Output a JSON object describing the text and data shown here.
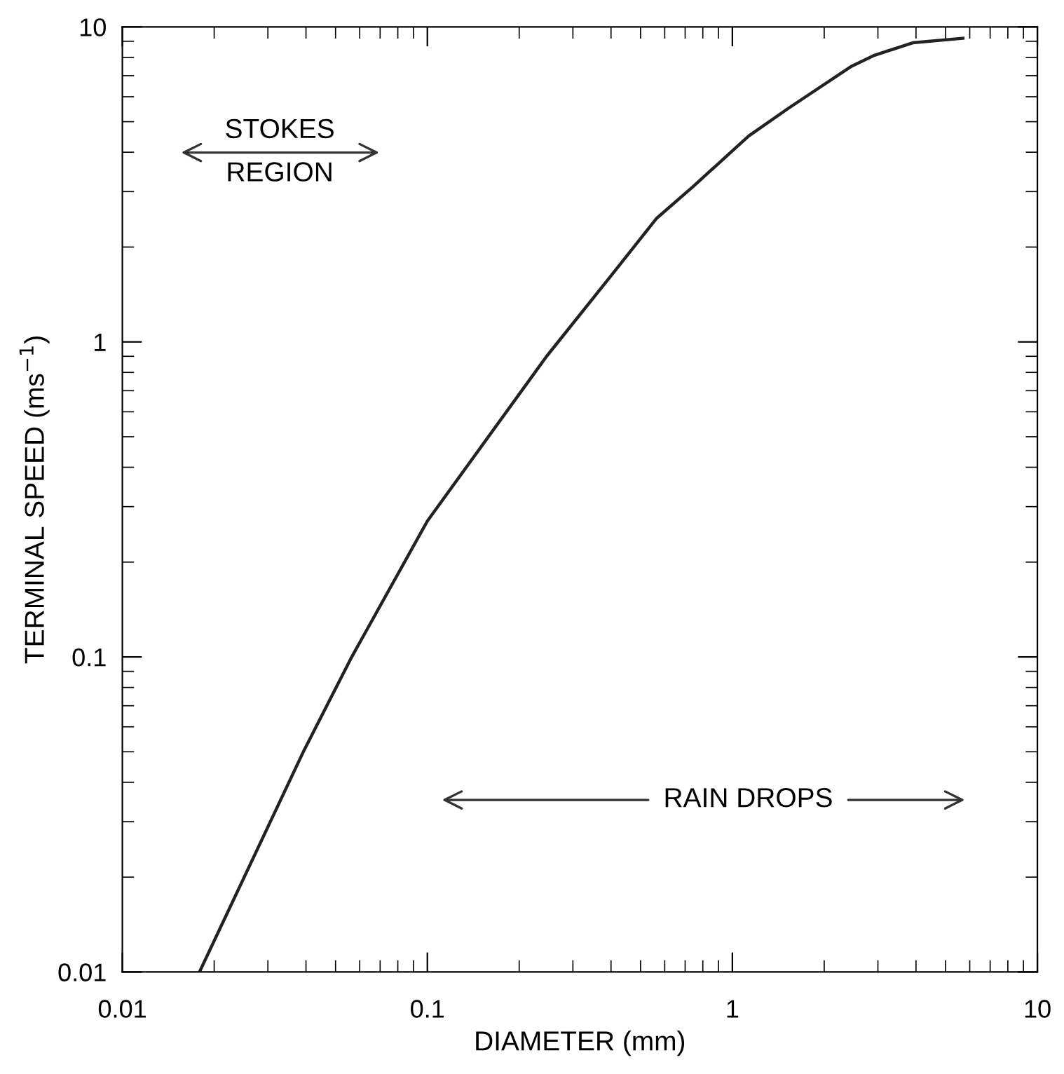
{
  "chart_data": {
    "type": "line",
    "xlabel": "DIAMETER (mm)",
    "ylabel": "TERMINAL SPEED (ms$^{−1}$)",
    "log": "xy",
    "xlim": [
      0.01,
      10
    ],
    "ylim": [
      0.01,
      10
    ],
    "xticks": [
      0.01,
      0.1,
      1,
      10
    ],
    "yticks": [
      0.01,
      0.1,
      1,
      10
    ],
    "series": [
      {
        "color": "#222222",
        "x": [
          0.0179,
          0.0394,
          0.0565,
          0.1,
          0.246,
          0.406,
          0.565,
          0.74,
          1.13,
          1.52,
          2.46,
          2.9,
          3.9,
          5.7
        ],
        "values": [
          0.01,
          0.0505,
          0.1,
          0.27,
          0.9,
          1.65,
          2.47,
          3.1,
          4.5,
          5.5,
          7.5,
          8.1,
          8.9,
          9.2
        ]
      }
    ],
    "annotations": [
      "STOKES\nREGION",
      "RAIN DROPS"
    ],
    "grid": false,
    "legend": false,
    "marker": "none",
    "line_style": "solid"
  }
}
